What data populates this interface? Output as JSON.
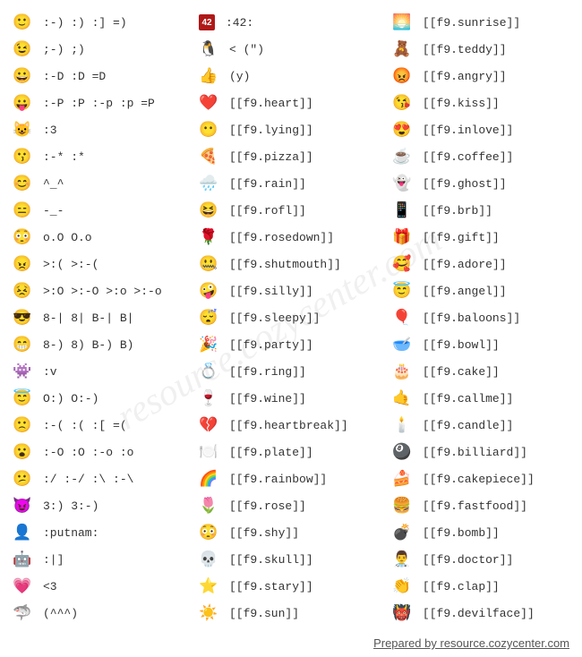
{
  "watermark": "resource.cozycenter.com",
  "footer": "Prepared by resource.cozycenter.com",
  "col1": [
    {
      "icon": "🙂",
      "code": ":-) :) :] =)"
    },
    {
      "icon": "😉",
      "code": ";-) ;)"
    },
    {
      "icon": "😀",
      "code": ":-D :D =D"
    },
    {
      "icon": "😛",
      "code": ":-P :P :-p :p =P"
    },
    {
      "icon": "😺",
      "code": ":3"
    },
    {
      "icon": "😗",
      "code": ":-* :*"
    },
    {
      "icon": "😊",
      "code": "^_^"
    },
    {
      "icon": "😑",
      "code": "-_-"
    },
    {
      "icon": "😳",
      "code": "o.O O.o"
    },
    {
      "icon": "😠",
      "code": ">:( >:-("
    },
    {
      "icon": "😣",
      "code": ">:O >:-O >:o >:-o"
    },
    {
      "icon": "😎",
      "code": "8-| 8| B-| B|"
    },
    {
      "icon": "😁",
      "code": "8-) 8) B-) B)"
    },
    {
      "icon": "👾",
      "code": ":v"
    },
    {
      "icon": "😇",
      "code": "O:) O:-)"
    },
    {
      "icon": "🙁",
      "code": ":-( :( :[ =("
    },
    {
      "icon": "😮",
      "code": ":-O :O :-o :o"
    },
    {
      "icon": "😕",
      "code": ":/ :-/ :\\ :-\\"
    },
    {
      "icon": "😈",
      "code": "3:) 3:-)"
    },
    {
      "icon": "👤",
      "code": ":putnam:"
    },
    {
      "icon": "🤖",
      "code": ":|]"
    },
    {
      "icon": "💗",
      "code": "<3"
    },
    {
      "icon": "🦈",
      "code": "(^^^)"
    }
  ],
  "col2": [
    {
      "icon": "�này",
      "iconText": "42",
      "code": ":42:",
      "iconBg": "#b01818"
    },
    {
      "icon": "🐧",
      "code": "< (\")"
    },
    {
      "icon": "👍",
      "code": "(y)"
    },
    {
      "icon": "❤️",
      "code": "[[f9.heart]]"
    },
    {
      "icon": "😶",
      "code": "[[f9.lying]]"
    },
    {
      "icon": "🍕",
      "code": "[[f9.pizza]]"
    },
    {
      "icon": "🌧️",
      "code": "[[f9.rain]]"
    },
    {
      "icon": "😆",
      "code": "[[f9.rofl]]"
    },
    {
      "icon": "🌹",
      "code": "[[f9.rosedown]]"
    },
    {
      "icon": "🤐",
      "code": "[[f9.shutmouth]]"
    },
    {
      "icon": "🤪",
      "code": "[[f9.silly]]"
    },
    {
      "icon": "😴",
      "code": "[[f9.sleepy]]"
    },
    {
      "icon": "🎉",
      "code": "[[f9.party]]"
    },
    {
      "icon": "💍",
      "code": "[[f9.ring]]"
    },
    {
      "icon": "🍷",
      "code": "[[f9.wine]]"
    },
    {
      "icon": "💔",
      "code": "[[f9.heartbreak]]"
    },
    {
      "icon": "🍽️",
      "code": "[[f9.plate]]"
    },
    {
      "icon": "🌈",
      "code": "[[f9.rainbow]]"
    },
    {
      "icon": "🌷",
      "code": "[[f9.rose]]"
    },
    {
      "icon": "😳",
      "code": "[[f9.shy]]"
    },
    {
      "icon": "💀",
      "code": "[[f9.skull]]"
    },
    {
      "icon": "⭐",
      "code": "[[f9.stary]]"
    },
    {
      "icon": "☀️",
      "code": "[[f9.sun]]"
    }
  ],
  "col3": [
    {
      "icon": "🌅",
      "code": "[[f9.sunrise]]"
    },
    {
      "icon": "🧸",
      "code": "[[f9.teddy]]"
    },
    {
      "icon": "😡",
      "code": "[[f9.angry]]"
    },
    {
      "icon": "😘",
      "code": "[[f9.kiss]]"
    },
    {
      "icon": "😍",
      "code": "[[f9.inlove]]"
    },
    {
      "icon": "☕",
      "code": "[[f9.coffee]]"
    },
    {
      "icon": "👻",
      "code": "[[f9.ghost]]"
    },
    {
      "icon": "📱",
      "code": "[[f9.brb]]"
    },
    {
      "icon": "🎁",
      "code": "[[f9.gift]]"
    },
    {
      "icon": "🥰",
      "code": "[[f9.adore]]"
    },
    {
      "icon": "😇",
      "code": "[[f9.angel]]"
    },
    {
      "icon": "🎈",
      "code": "[[f9.baloons]]"
    },
    {
      "icon": "🥣",
      "code": "[[f9.bowl]]"
    },
    {
      "icon": "🎂",
      "code": "[[f9.cake]]"
    },
    {
      "icon": "🤙",
      "code": "[[f9.callme]]"
    },
    {
      "icon": "🕯️",
      "code": "[[f9.candle]]"
    },
    {
      "icon": "🎱",
      "code": "[[f9.billiard]]"
    },
    {
      "icon": "🍰",
      "code": "[[f9.cakepiece]]"
    },
    {
      "icon": "🍔",
      "code": "[[f9.fastfood]]"
    },
    {
      "icon": "💣",
      "code": "[[f9.bomb]]"
    },
    {
      "icon": "👨‍⚕️",
      "code": "[[f9.doctor]]"
    },
    {
      "icon": "👏",
      "code": "[[f9.clap]]"
    },
    {
      "icon": "👹",
      "code": "[[f9.devilface]]"
    }
  ]
}
